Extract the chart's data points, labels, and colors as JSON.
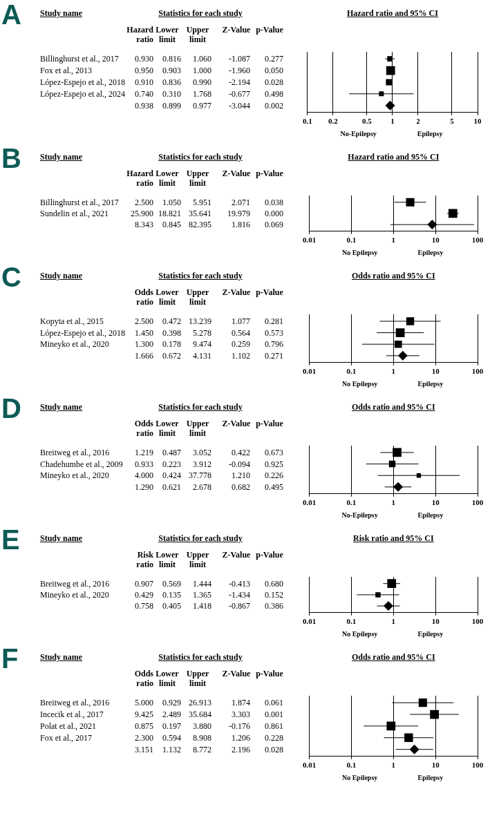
{
  "chart_data": [
    {
      "type": "scatter",
      "title": "Hazard ratio and 95% CI",
      "orientation": "horizontal",
      "log": "x",
      "grid": "x",
      "tick_labels": "x",
      "xlim": [
        0.1,
        10
      ],
      "xticks": [
        0.1,
        0.2,
        0.5,
        1,
        2,
        5,
        10
      ],
      "categories": [
        "Billinghurst et al., 2017",
        "Fox et al., 2013",
        "López-Espejo et al., 2018",
        "López-Espejo et al., 2024",
        null
      ],
      "series": [
        {
          "marker": "square",
          "color": "#000000",
          "values": [
            0.93,
            0.95,
            0.91,
            0.74,
            null
          ],
          "errors": [
            [
              0.816,
              1.06
            ],
            null,
            [
              0.836,
              0.99
            ],
            [
              0.31,
              1.768
            ],
            null
          ],
          "sizes": [
            0.35,
            1,
            0.5,
            0.3,
            null
          ]
        },
        {
          "marker": "diamond",
          "color": "#000000",
          "values": [
            null,
            null,
            null,
            null,
            0.938
          ],
          "errors": [
            null,
            null,
            null,
            null,
            [
              0.899,
              0.977
            ]
          ]
        }
      ],
      "annotations": [
        "A",
        "Study name",
        "Statistics for each study",
        "Hazard ratio",
        "Lower limit",
        "Upper limit",
        "Z-Value",
        "p-Value",
        "No-Epilepsy",
        "Epilepsy",
        "0.930",
        "0.816",
        "1.060",
        "-1.087",
        "0.277",
        "0.950",
        "0.903",
        "1.000",
        "-1.960",
        "0.050",
        "0.910",
        "0.836",
        "0.990",
        "-2.194",
        "0.028",
        "0.740",
        "0.310",
        "1.768",
        "-0.677",
        "0.498",
        "0.938",
        "0.899",
        "0.977",
        "-3.044",
        "0.002"
      ]
    },
    {
      "type": "scatter",
      "title": "Hazard ratio and 95% CI",
      "orientation": "horizontal",
      "log": "x",
      "grid": "x",
      "tick_labels": "x",
      "xlim": [
        0.01,
        100
      ],
      "xticks": [
        0.01,
        0.1,
        1,
        10,
        100
      ],
      "categories": [
        "Billinghurst et al., 2017",
        "Sundelin et al., 2021",
        null
      ],
      "series": [
        {
          "marker": "square",
          "color": "#000000",
          "values": [
            2.5,
            25.9,
            null
          ],
          "errors": [
            [
              1.05,
              5.951
            ],
            [
              18.821,
              35.641
            ],
            null
          ],
          "sizes": [
            0.9,
            1,
            null
          ]
        },
        {
          "marker": "diamond",
          "color": "#000000",
          "values": [
            null,
            null,
            8.343
          ],
          "errors": [
            null,
            null,
            [
              0.845,
              82.395
            ]
          ]
        }
      ],
      "annotations": [
        "B",
        "Study name",
        "Statistics for each study",
        "Hazard ratio",
        "Lower limit",
        "Upper limit",
        "Z-Value",
        "p-Value",
        "No Epilepsy",
        "Epilepsy",
        "2.500",
        "1.050",
        "5.951",
        "2.071",
        "0.038",
        "25.900",
        "18.821",
        "35.641",
        "19.979",
        "0.000",
        "8.343",
        "0.845",
        "82.395",
        "1.816",
        "0.069"
      ]
    },
    {
      "type": "scatter",
      "title": "Odds ratio and 95% CI",
      "orientation": "horizontal",
      "log": "x",
      "grid": "x",
      "tick_labels": "x",
      "xlim": [
        0.01,
        100
      ],
      "xticks": [
        0.01,
        0.1,
        1,
        10,
        100
      ],
      "categories": [
        "Kopyta et al., 2015",
        "López-Espejo et al., 2018",
        "Mineyko et al., 2020",
        null
      ],
      "series": [
        {
          "marker": "square",
          "color": "#000000",
          "values": [
            2.5,
            1.45,
            1.3,
            null
          ],
          "errors": [
            [
              0.472,
              13.239
            ],
            [
              0.398,
              5.278
            ],
            [
              0.178,
              9.474
            ],
            null
          ],
          "sizes": [
            0.8,
            1,
            0.7,
            null
          ]
        },
        {
          "marker": "diamond",
          "color": "#000000",
          "values": [
            null,
            null,
            null,
            1.666
          ],
          "errors": [
            null,
            null,
            null,
            [
              0.672,
              4.131
            ]
          ]
        }
      ],
      "annotations": [
        "C",
        "Study name",
        "Statistics for each study",
        "Odds ratio",
        "Lower limit",
        "Upper limit",
        "Z-Value",
        "p-Value",
        "No Epilepsy",
        "Epilepsy",
        "2.500",
        "0.472",
        "13.239",
        "1.077",
        "0.281",
        "1.450",
        "0.398",
        "5.278",
        "0.564",
        "0.573",
        "1.300",
        "0.178",
        "9.474",
        "0.259",
        "0.796",
        "1.666",
        "0.672",
        "4.131",
        "1.102",
        "0.271"
      ]
    },
    {
      "type": "scatter",
      "title": "Odds ratio and 95% CI",
      "orientation": "horizontal",
      "log": "x",
      "grid": "x",
      "tick_labels": "x",
      "xlim": [
        0.01,
        100
      ],
      "xticks": [
        0.01,
        0.1,
        1,
        10,
        100
      ],
      "categories": [
        "Breitweg et al., 2016",
        "Chadehumbe et al., 2009",
        "Mineyko et al., 2020",
        null
      ],
      "series": [
        {
          "marker": "square",
          "color": "#000000",
          "values": [
            1.219,
            0.933,
            4.0,
            null
          ],
          "errors": [
            [
              0.487,
              3.052
            ],
            [
              0.223,
              3.912
            ],
            [
              0.424,
              37.778
            ],
            null
          ],
          "sizes": [
            1,
            0.55,
            0.25,
            null
          ]
        },
        {
          "marker": "diamond",
          "color": "#000000",
          "values": [
            null,
            null,
            null,
            1.29
          ],
          "errors": [
            null,
            null,
            null,
            [
              0.621,
              2.678
            ]
          ]
        }
      ],
      "annotations": [
        "D",
        "Study name",
        "Statistics for each study",
        "Odds ratio",
        "Lower limit",
        "Upper limit",
        "Z-Value",
        "p-Value",
        "No-Epilepsy",
        "Epilepsy",
        "1.219",
        "0.487",
        "3.052",
        "0.422",
        "0.673",
        "0.933",
        "0.223",
        "3.912",
        "-0.094",
        "0.925",
        "4.000",
        "0.424",
        "37.778",
        "1.210",
        "0.226",
        "1.290",
        "0.621",
        "2.678",
        "0.682",
        "0.495"
      ]
    },
    {
      "type": "scatter",
      "title": "Risk ratio and 95% CI",
      "orientation": "horizontal",
      "log": "x",
      "grid": "x",
      "tick_labels": "x",
      "xlim": [
        0.01,
        100
      ],
      "xticks": [
        0.01,
        0.1,
        1,
        10,
        100
      ],
      "categories": [
        "Breitweg et al., 2016",
        "Mineyko et al., 2020",
        null
      ],
      "series": [
        {
          "marker": "square",
          "color": "#000000",
          "values": [
            0.907,
            0.429,
            null
          ],
          "errors": [
            [
              0.569,
              1.444
            ],
            [
              0.135,
              1.365
            ],
            null
          ],
          "sizes": [
            1,
            0.35,
            null
          ]
        },
        {
          "marker": "diamond",
          "color": "#000000",
          "values": [
            null,
            null,
            0.758
          ],
          "errors": [
            null,
            null,
            [
              0.405,
              1.418
            ]
          ]
        }
      ],
      "annotations": [
        "E",
        "Study name",
        "Statistics for each study",
        "Risk ratio",
        "Lower limit",
        "Upper limit",
        "Z-Value",
        "p-Value",
        "No Epilepsy",
        "Epilepsy",
        "0.907",
        "0.569",
        "1.444",
        "-0.413",
        "0.680",
        "0.429",
        "0.135",
        "1.365",
        "-1.434",
        "0.152",
        "0.758",
        "0.405",
        "1.418",
        "-0.867",
        "0.386"
      ]
    },
    {
      "type": "scatter",
      "title": "Odds ratio and 95% CI",
      "orientation": "horizontal",
      "log": "x",
      "grid": "x",
      "tick_labels": "x",
      "xlim": [
        0.01,
        100
      ],
      "xticks": [
        0.01,
        0.1,
        1,
        10,
        100
      ],
      "categories": [
        "Breitweg et al., 2016",
        "Incecik et al., 2017",
        "Polat et al., 2021",
        "Fox et al., 2017",
        null
      ],
      "series": [
        {
          "marker": "square",
          "color": "#000000",
          "values": [
            5.0,
            9.425,
            0.875,
            2.3,
            null
          ],
          "errors": [
            [
              0.929,
              26.913
            ],
            [
              2.489,
              35.684
            ],
            [
              0.197,
              3.88
            ],
            [
              0.594,
              8.908
            ],
            null
          ],
          "sizes": [
            0.9,
            1,
            1,
            0.95,
            null
          ]
        },
        {
          "marker": "diamond",
          "color": "#000000",
          "values": [
            null,
            null,
            null,
            null,
            3.151
          ],
          "errors": [
            null,
            null,
            null,
            null,
            [
              1.132,
              8.772
            ]
          ]
        }
      ],
      "annotations": [
        "F",
        "Study name",
        "Statistics for each study",
        "Odds ratio",
        "Lower limit",
        "Upper limit",
        "Z-Value",
        "p-Value",
        "No Epilepsy",
        "Epilepsy",
        "5.000",
        "0.929",
        "26.913",
        "1.874",
        "0.061",
        "9.425",
        "2.489",
        "35.684",
        "3.303",
        "0.001",
        "0.875",
        "0.197",
        "3.880",
        "-0.176",
        "0.861",
        "2.300",
        "0.594",
        "8.908",
        "1.206",
        "0.228",
        "3.151",
        "1.132",
        "8.772",
        "2.196",
        "0.028"
      ]
    }
  ]
}
